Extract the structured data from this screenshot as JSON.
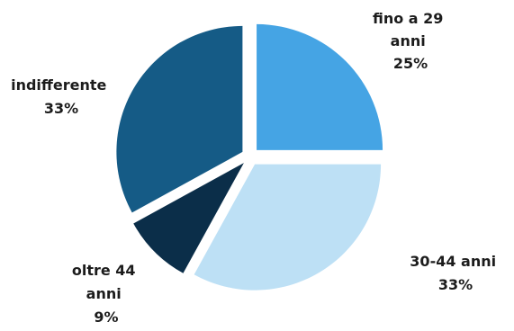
{
  "chart_data": {
    "type": "pie",
    "title": "",
    "slices": [
      {
        "name_lines": [
          "fino a 29",
          "anni"
        ],
        "value_label": "25%",
        "value": 25,
        "color": "#45a4e4"
      },
      {
        "name_lines": [
          "30-44 anni"
        ],
        "value_label": "33%",
        "value": 33,
        "color": "#bde0f5"
      },
      {
        "name_lines": [
          "oltre 44",
          "anni"
        ],
        "value_label": "9%",
        "value": 9,
        "color": "#0b2e49"
      },
      {
        "name_lines": [
          "indifferente"
        ],
        "value_label": "33%",
        "value": 33,
        "color": "#155b86"
      }
    ],
    "start_angle": "12 o'clock",
    "direction": "clockwise",
    "exploded": true
  }
}
